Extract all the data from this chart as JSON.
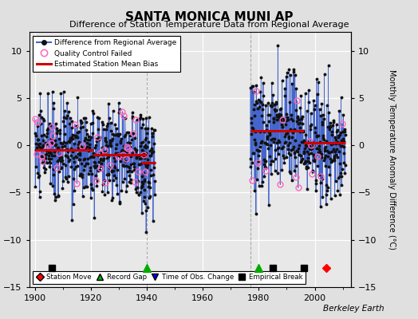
{
  "title": "SANTA MONICA MUNI AP",
  "subtitle": "Difference of Station Temperature Data from Regional Average",
  "ylabel": "Monthly Temperature Anomaly Difference (°C)",
  "ylim": [
    -15,
    12
  ],
  "yticks": [
    -15,
    -10,
    -5,
    0,
    5,
    10
  ],
  "xlim": [
    1898,
    2013
  ],
  "xticks": [
    1900,
    1920,
    1940,
    1960,
    1980,
    2000
  ],
  "fig_bg": "#e0e0e0",
  "plot_bg": "#e8e8e8",
  "grid_color": "#ffffff",
  "line_color": "#4466cc",
  "dot_color": "#111111",
  "bias_color": "#cc0000",
  "qc_color": "#ff66bb",
  "attribution": "Berkeley Earth",
  "bias_segments": [
    {
      "xstart": 1900,
      "xend": 1921,
      "yval": -0.5
    },
    {
      "xstart": 1921,
      "xend": 1940,
      "yval": -1.0
    },
    {
      "xstart": 1938,
      "xend": 1943,
      "yval": -1.8
    },
    {
      "xstart": 1977,
      "xend": 1996,
      "yval": 1.5
    },
    {
      "xstart": 1996,
      "xend": 2011,
      "yval": 0.3
    }
  ],
  "station_moves": [
    2004
  ],
  "record_gaps": [
    1940,
    1980
  ],
  "obs_changes": [],
  "empirical_breaks": [
    1906,
    1985,
    1996
  ],
  "seg1_start": 1900,
  "seg1_end": 1940,
  "seg2_start": 1938,
  "seg2_end": 1943,
  "seg3_start": 1977,
  "seg3_end": 2011
}
